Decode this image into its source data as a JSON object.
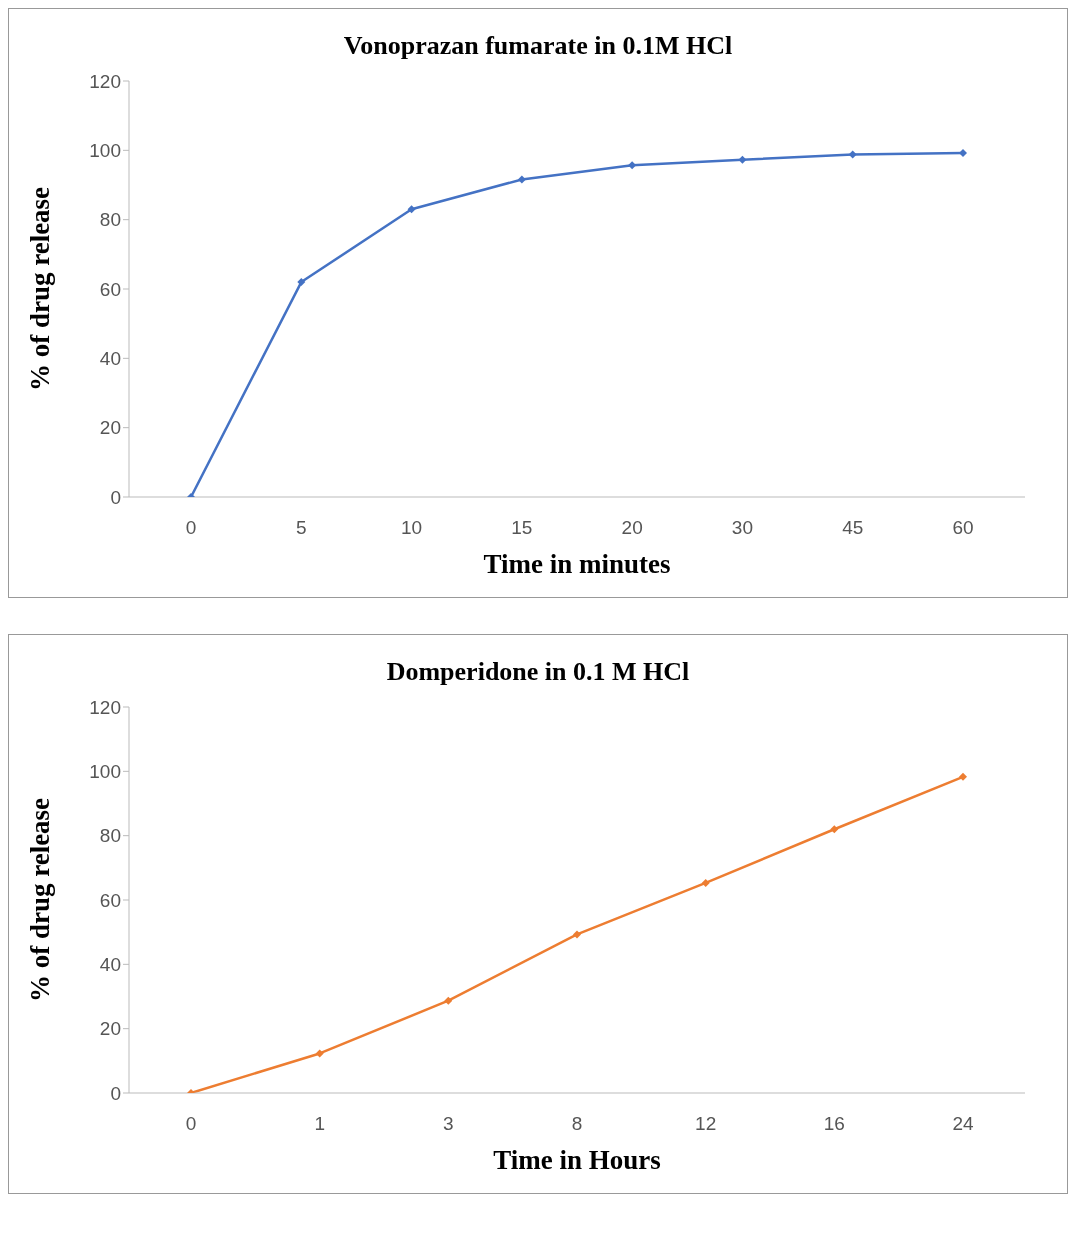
{
  "chart_data": [
    {
      "type": "line",
      "title": "Vonoprazan fumarate in 0.1M HCl",
      "xlabel": "Time in minutes",
      "ylabel": "% of drug release",
      "categories": [
        "0",
        "5",
        "10",
        "15",
        "20",
        "30",
        "45",
        "60"
      ],
      "series": [
        {
          "color": "#4472c4",
          "values": [
            0,
            62,
            83,
            91.6,
            95.7,
            97.3,
            98.8,
            99.2
          ]
        }
      ],
      "ylim": [
        0,
        120
      ],
      "yticks": [
        0,
        20,
        40,
        60,
        80,
        100,
        120
      ],
      "grid": false,
      "legend": false,
      "marker": "diamond",
      "line_style": "solid"
    },
    {
      "type": "line",
      "title": "Domperidone in 0.1 M HCl",
      "xlabel": "Time in Hours",
      "ylabel": "% of drug release",
      "categories": [
        "0",
        "1",
        "3",
        "8",
        "12",
        "16",
        "24"
      ],
      "series": [
        {
          "color": "#ed7d31",
          "values": [
            0,
            12.3,
            28.7,
            49.3,
            65.3,
            82,
            98.3
          ]
        }
      ],
      "ylim": [
        0,
        120
      ],
      "yticks": [
        0,
        20,
        40,
        60,
        80,
        100,
        120
      ],
      "grid": false,
      "legend": false,
      "marker": "diamond",
      "line_style": "solid"
    }
  ]
}
